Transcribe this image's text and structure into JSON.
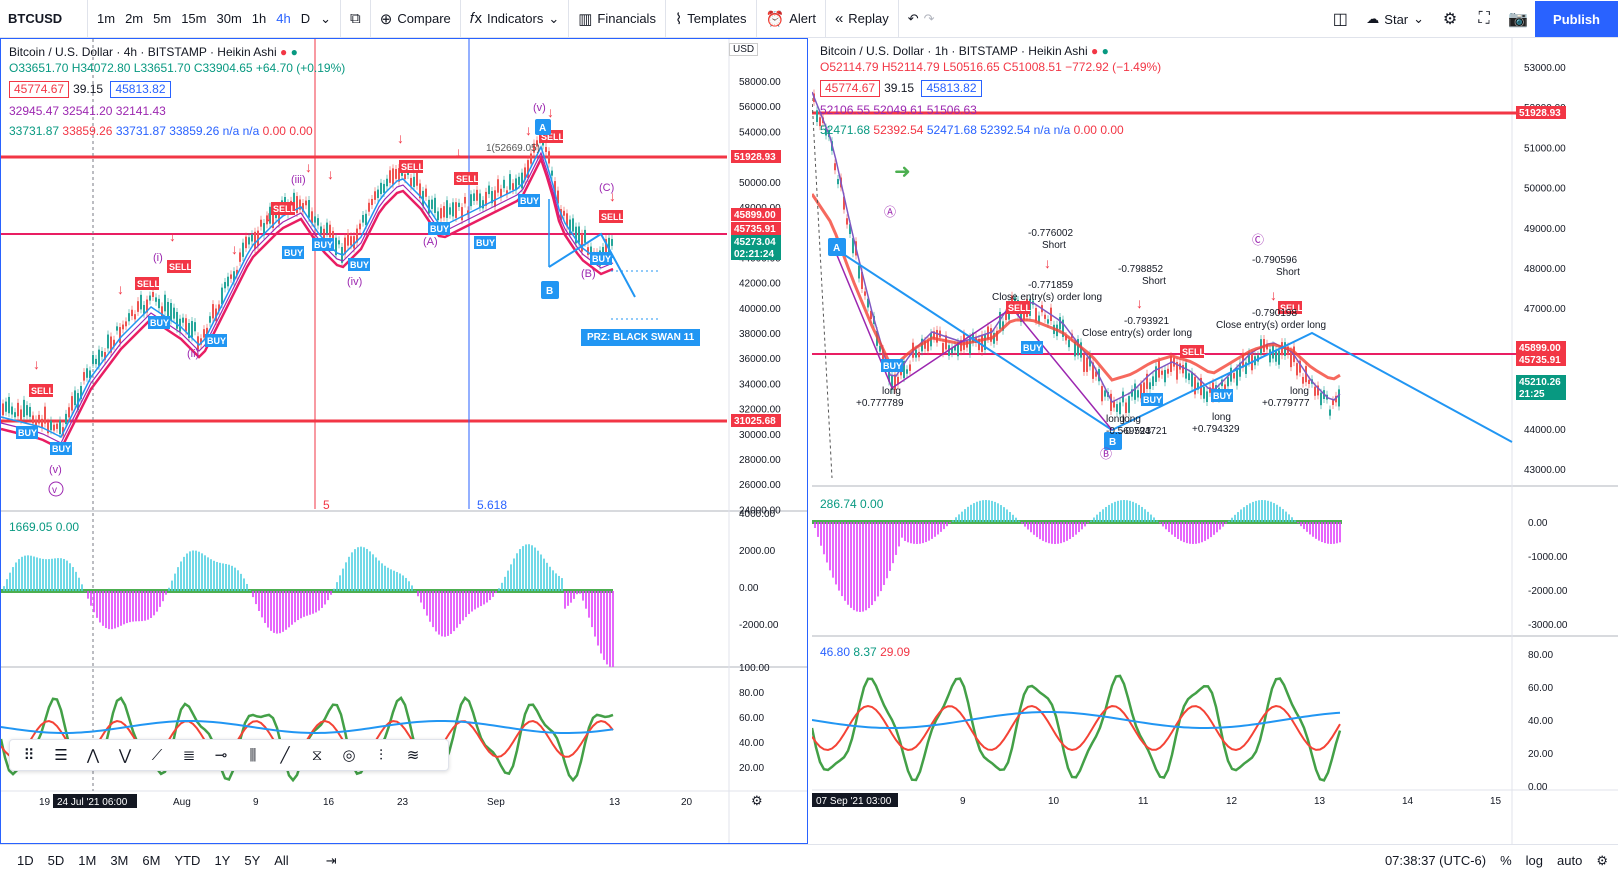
{
  "symbol": "BTCUSD",
  "timeframes": [
    "1m",
    "2m",
    "5m",
    "15m",
    "30m",
    "1h",
    "4h",
    "D"
  ],
  "active_timeframe": "4h",
  "toolbar": {
    "compare": "Compare",
    "indicators": "Indicators",
    "financials": "Financials",
    "templates": "Templates",
    "alert": "Alert",
    "replay": "Replay",
    "star": "Star",
    "publish": "Publish"
  },
  "left_chart": {
    "title": "Bitcoin / U.S. Dollar · 4h · BITSTAMP · Heikin Ashi",
    "ohlc": "O33651.70 H34072.80 L33651.70 C33904.65 +64.70 (+0.19%)",
    "box1": "45774.67",
    "mid": "39.15",
    "box2": "45813.82",
    "ind1": "32945.47 32541.20 32141.43",
    "ind2_green": "33731.87",
    "ind2_red": "33859.26",
    "ind2_blue": "33731.87 33859.26 n/a n/a",
    "ind2_tail": "0.00 0.00",
    "osc_label": "1669.05",
    "osc_val": "0.00",
    "fib_a": "5",
    "fib_b": "5.618",
    "fib_c": "1(52669.05)",
    "prz": "PRZ: BLACK SWAN 11",
    "currency": "USD",
    "price_ticks": [
      "58000.00",
      "56000.00",
      "54000.00",
      "52000.00",
      "50000.00",
      "48000.00",
      "46000.00",
      "44000.00",
      "42000.00",
      "40000.00",
      "38000.00",
      "36000.00",
      "34000.00",
      "32000.00",
      "30000.00",
      "28000.00",
      "26000.00",
      "24000.00"
    ],
    "price_tags": [
      {
        "label": "51928.93",
        "color": "#f23645"
      },
      {
        "label": "45899.00",
        "color": "#f23645"
      },
      {
        "label": "45735.91",
        "color": "#f23645"
      },
      {
        "label": "45273.04",
        "color": "#089981"
      },
      {
        "label": "02:21:24",
        "color": "#089981"
      },
      {
        "label": "31025.68",
        "color": "#f23645"
      }
    ],
    "osc_ticks": [
      "4000.00",
      "2000.00",
      "0.00",
      "-2000.00"
    ],
    "rsi_ticks": [
      "100.00",
      "80.00",
      "60.00",
      "40.00",
      "20.00"
    ],
    "date_ticks": [
      "19",
      "24 Jul '21 06:00",
      "Aug",
      "9",
      "16",
      "23",
      "Sep",
      "13",
      "20"
    ]
  },
  "right_chart": {
    "title": "Bitcoin / U.S. Dollar · 1h · BITSTAMP · Heikin Ashi",
    "ohlc": "O52114.79 H52114.79 L50516.65 C51008.51 −772.92 (−1.49%)",
    "box1": "45774.67",
    "mid": "39.15",
    "box2": "45813.82",
    "ind1": "52106.55 52049.61 51506.63",
    "ind2_green": "52471.68",
    "ind2_red": "52392.54",
    "ind2_blue": "52471.68 52392.54 n/a n/a",
    "ind2_tail": "0.00 0.00",
    "osc_label": "286.74",
    "osc_val": "0.00",
    "rsi_a": "46.80",
    "rsi_b": "8.37",
    "rsi_c": "29.09",
    "annotations": [
      "-0.776002",
      "Short",
      "-0.771859",
      "Close entry(s) order long",
      "-0.798852",
      "Short",
      "-0.793921",
      "Close entry(s) order long",
      "-0.790596",
      "Short",
      "-0.790198",
      "Close entry(s) order long",
      "long",
      "+0.777789",
      "long",
      "-0.794721",
      "long",
      "+0.794329",
      "long",
      "+0.779777",
      "long",
      "-0.569523"
    ],
    "price_ticks": [
      "53000.00",
      "52000.00",
      "51000.00",
      "50000.00",
      "49000.00",
      "48000.00",
      "47000.00",
      "46000.00",
      "45000.00",
      "44000.00",
      "43000.00"
    ],
    "price_tags": [
      {
        "label": "51928.93",
        "color": "#f23645"
      },
      {
        "label": "45899.00",
        "color": "#f23645"
      },
      {
        "label": "45735.91",
        "color": "#f23645"
      },
      {
        "label": "45210.26",
        "color": "#089981"
      },
      {
        "label": "21:25",
        "color": "#089981"
      }
    ],
    "osc_ticks": [
      "0.00",
      "-1000.00",
      "-2000.00",
      "-3000.00"
    ],
    "rsi_ticks": [
      "80.00",
      "60.00",
      "40.00",
      "20.00",
      "0.00"
    ],
    "date_ticks": [
      "07 Sep '21  03:00",
      "9",
      "10",
      "11",
      "12",
      "13",
      "14",
      "15"
    ]
  },
  "bottom": {
    "ranges": [
      "1D",
      "5D",
      "1M",
      "3M",
      "6M",
      "YTD",
      "1Y",
      "5Y",
      "All"
    ],
    "time": "07:38:37 (UTC-6)",
    "percent": "%",
    "log": "log",
    "auto": "auto"
  }
}
